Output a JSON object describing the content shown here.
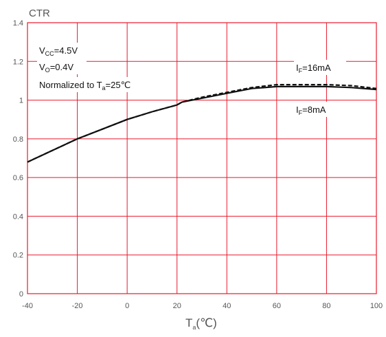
{
  "chart_data": {
    "type": "line",
    "title": "",
    "ylabel": "CTR",
    "xlabel": {
      "main": "T",
      "sub": "a",
      "unit": "(℃)"
    },
    "xlim": [
      -40,
      100
    ],
    "ylim": [
      0,
      1.4
    ],
    "x_ticks": [
      -40,
      -20,
      0,
      20,
      40,
      60,
      80,
      100
    ],
    "y_ticks": [
      0,
      0.2,
      0.4,
      0.6,
      0.8,
      1,
      1.2,
      1.4
    ],
    "grid": true,
    "grid_color": "#e8192c",
    "line_color": "#111111",
    "annotations": {
      "line1": {
        "main": "V",
        "sub": "CC",
        "rest": "=4.5V"
      },
      "line2": {
        "main": "V",
        "sub": "O",
        "rest": "=0.4V"
      },
      "line3": {
        "main": "Normalized to T",
        "sub": "a",
        "rest": "=25℃"
      }
    },
    "series": [
      {
        "label": {
          "main": "I",
          "sub": "F",
          "rest": "=16mA"
        },
        "style": "dashed",
        "x": [
          -40,
          -30,
          -20,
          -10,
          0,
          10,
          20,
          22,
          30,
          40,
          50,
          60,
          70,
          80,
          90,
          100
        ],
        "y": [
          0.68,
          0.74,
          0.8,
          0.85,
          0.9,
          0.94,
          0.975,
          0.99,
          1.015,
          1.04,
          1.065,
          1.08,
          1.08,
          1.08,
          1.075,
          1.06
        ]
      },
      {
        "label": {
          "main": "I",
          "sub": "F",
          "rest": "=8mA"
        },
        "style": "solid",
        "x": [
          -40,
          -30,
          -20,
          -10,
          0,
          10,
          20,
          22,
          30,
          40,
          50,
          60,
          70,
          80,
          90,
          100
        ],
        "y": [
          0.68,
          0.74,
          0.8,
          0.85,
          0.9,
          0.94,
          0.975,
          0.99,
          1.01,
          1.035,
          1.06,
          1.07,
          1.07,
          1.07,
          1.065,
          1.055
        ]
      }
    ]
  }
}
